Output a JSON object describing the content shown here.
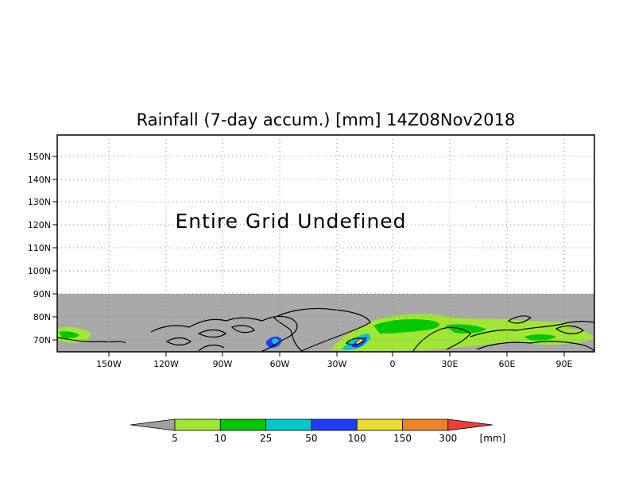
{
  "title": "Rainfall (7-day accum.) [mm] 14Z08Nov2018",
  "notice": "Entire Grid Undefined",
  "lat_labels": [
    "150N",
    "140N",
    "130N",
    "120N",
    "110N",
    "100N",
    "90N",
    "80N",
    "70N"
  ],
  "lon_labels": [
    "150W",
    "120W",
    "90W",
    "60W",
    "30W",
    "0",
    "30E",
    "60E",
    "90E"
  ],
  "legend": {
    "unit": "[mm]",
    "thresholds": [
      "5",
      "10",
      "25",
      "50",
      "100",
      "150",
      "300"
    ],
    "colors": [
      "#a0a0a0",
      "#a0e632",
      "#00c800",
      "#00c8c8",
      "#1e3cff",
      "#e6dc32",
      "#f08228",
      "#f03c3c"
    ]
  },
  "map_colors": {
    "undefined_gray": "#a9a9a9",
    "light_green": "#a0e632",
    "green": "#00c800",
    "cyan": "#00c8c8",
    "blue": "#1e3cff",
    "yellow": "#e6dc32"
  }
}
